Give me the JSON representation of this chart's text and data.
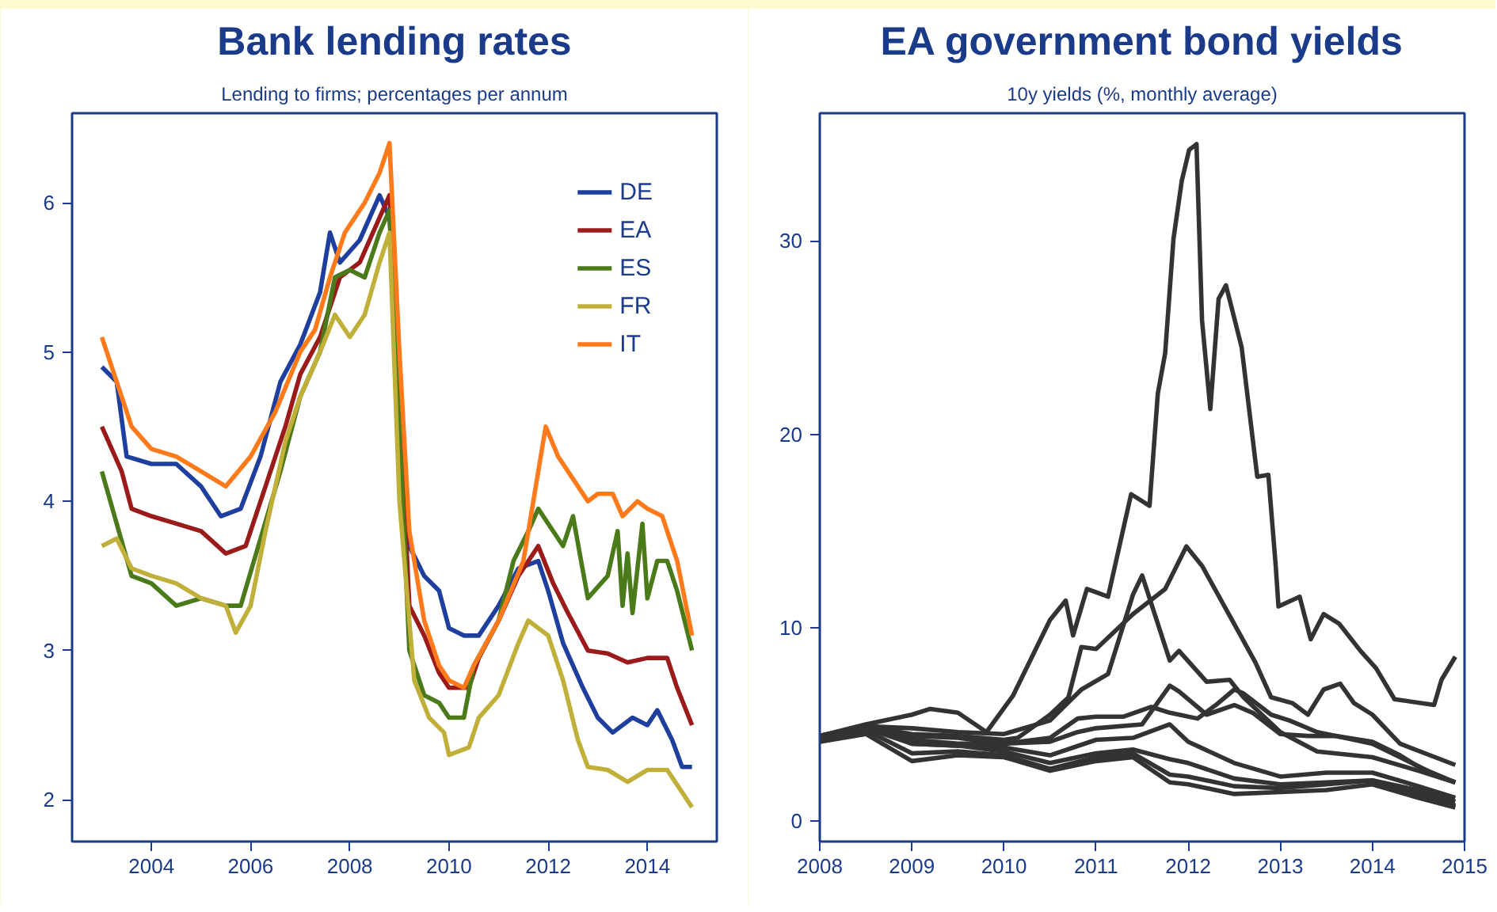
{
  "chart_data": [
    {
      "type": "line",
      "title": "Bank lending rates",
      "subtitle": "Lending to firms; percentages per annum",
      "xlim": [
        2002.4,
        2015.4
      ],
      "ylim": [
        1.72,
        6.6
      ],
      "xticks": [
        2004,
        2006,
        2008,
        2010,
        2012,
        2014
      ],
      "yticks": [
        2,
        3,
        4,
        5,
        6
      ],
      "grid": false,
      "legend": "top right",
      "line_style": "solid",
      "marker": "none",
      "series": [
        {
          "name": "DE",
          "color": "#1f3f9f",
          "x": [
            2003.0,
            2003.3,
            2003.5,
            2004,
            2004.5,
            2005,
            2005.4,
            2005.8,
            2006.2,
            2006.6,
            2007,
            2007.4,
            2007.6,
            2007.8,
            2008.2,
            2008.6,
            2008.8,
            2009.2,
            2009.5,
            2009.8,
            2010.0,
            2010.3,
            2010.6,
            2011.0,
            2011.4,
            2011.8,
            2012.0,
            2012.3,
            2012.7,
            2013.0,
            2013.3,
            2013.7,
            2014.0,
            2014.2,
            2014.5,
            2014.7,
            2014.9
          ],
          "values": [
            4.9,
            4.8,
            4.3,
            4.25,
            4.25,
            4.1,
            3.9,
            3.95,
            4.3,
            4.8,
            5.05,
            5.4,
            5.8,
            5.6,
            5.75,
            6.05,
            5.9,
            3.7,
            3.5,
            3.4,
            3.15,
            3.1,
            3.1,
            3.3,
            3.55,
            3.6,
            3.4,
            3.05,
            2.75,
            2.55,
            2.45,
            2.55,
            2.5,
            2.6,
            2.4,
            2.22,
            2.22
          ]
        },
        {
          "name": "EA",
          "color": "#9b1b1b",
          "x": [
            2003.0,
            2003.4,
            2003.6,
            2004,
            2004.5,
            2005,
            2005.5,
            2005.9,
            2006.3,
            2006.7,
            2007,
            2007.4,
            2007.8,
            2008.2,
            2008.6,
            2008.8,
            2009.0,
            2009.2,
            2009.5,
            2009.8,
            2010.0,
            2010.4,
            2010.6,
            2011.0,
            2011.4,
            2011.8,
            2012.1,
            2012.4,
            2012.8,
            2013.2,
            2013.6,
            2014.0,
            2014.4,
            2014.6,
            2014.9
          ],
          "values": [
            4.5,
            4.2,
            3.95,
            3.9,
            3.85,
            3.8,
            3.65,
            3.7,
            4.1,
            4.5,
            4.85,
            5.1,
            5.5,
            5.6,
            5.9,
            6.05,
            4.7,
            3.3,
            3.1,
            2.85,
            2.75,
            2.75,
            2.95,
            3.2,
            3.5,
            3.7,
            3.45,
            3.25,
            3.0,
            2.98,
            2.92,
            2.95,
            2.95,
            2.75,
            2.5
          ]
        },
        {
          "name": "ES",
          "color": "#4a7a1a",
          "x": [
            2003.0,
            2003.3,
            2003.6,
            2004,
            2004.5,
            2005,
            2005.5,
            2005.8,
            2006.2,
            2006.6,
            2007,
            2007.4,
            2007.7,
            2008.0,
            2008.3,
            2008.6,
            2008.8,
            2009.0,
            2009.2,
            2009.5,
            2009.8,
            2010.0,
            2010.3,
            2010.5,
            2011.0,
            2011.3,
            2011.6,
            2011.8,
            2012.0,
            2012.3,
            2012.5,
            2012.8,
            2013.2,
            2013.4,
            2013.5,
            2013.6,
            2013.7,
            2013.9,
            2014.0,
            2014.2,
            2014.4,
            2014.6,
            2014.9
          ],
          "values": [
            4.2,
            3.85,
            3.5,
            3.45,
            3.3,
            3.35,
            3.3,
            3.3,
            3.75,
            4.2,
            4.7,
            5.0,
            5.5,
            5.55,
            5.5,
            5.8,
            5.95,
            4.5,
            3.0,
            2.7,
            2.65,
            2.55,
            2.55,
            2.9,
            3.2,
            3.6,
            3.8,
            3.95,
            3.85,
            3.7,
            3.9,
            3.35,
            3.5,
            3.8,
            3.3,
            3.65,
            3.25,
            3.85,
            3.35,
            3.6,
            3.6,
            3.4,
            3.0
          ]
        },
        {
          "name": "FR",
          "color": "#c0b03a",
          "x": [
            2003.0,
            2003.3,
            2003.6,
            2004,
            2004.5,
            2005,
            2005.5,
            2005.7,
            2006.0,
            2006.3,
            2006.7,
            2007,
            2007.4,
            2007.7,
            2008.0,
            2008.3,
            2008.6,
            2008.8,
            2009.0,
            2009.3,
            2009.6,
            2009.9,
            2010.0,
            2010.4,
            2010.6,
            2011.0,
            2011.4,
            2011.6,
            2012.0,
            2012.3,
            2012.6,
            2012.8,
            2013.2,
            2013.6,
            2014.0,
            2014.4,
            2014.6,
            2014.9
          ],
          "values": [
            3.7,
            3.75,
            3.55,
            3.5,
            3.45,
            3.35,
            3.3,
            3.12,
            3.3,
            3.8,
            4.4,
            4.7,
            5.0,
            5.25,
            5.1,
            5.25,
            5.6,
            5.8,
            4.0,
            2.8,
            2.55,
            2.45,
            2.3,
            2.35,
            2.55,
            2.7,
            3.05,
            3.2,
            3.1,
            2.8,
            2.4,
            2.22,
            2.2,
            2.12,
            2.2,
            2.2,
            2.1,
            1.95
          ]
        },
        {
          "name": "IT",
          "color": "#ff7a1a",
          "x": [
            2003.0,
            2003.3,
            2003.6,
            2004,
            2004.5,
            2005,
            2005.5,
            2006,
            2006.5,
            2007,
            2007.3,
            2007.6,
            2007.9,
            2008.3,
            2008.6,
            2008.8,
            2009.0,
            2009.2,
            2009.5,
            2009.8,
            2010.0,
            2010.3,
            2010.5,
            2011.0,
            2011.5,
            2011.8,
            2011.95,
            2012.2,
            2012.5,
            2012.8,
            2013.0,
            2013.3,
            2013.5,
            2013.8,
            2014.0,
            2014.3,
            2014.6,
            2014.9
          ],
          "values": [
            5.1,
            4.8,
            4.5,
            4.35,
            4.3,
            4.2,
            4.1,
            4.3,
            4.6,
            5.0,
            5.15,
            5.5,
            5.8,
            6.0,
            6.2,
            6.4,
            5.0,
            3.8,
            3.2,
            2.9,
            2.8,
            2.75,
            2.9,
            3.2,
            3.6,
            4.2,
            4.5,
            4.3,
            4.15,
            4.0,
            4.05,
            4.05,
            3.9,
            4.0,
            3.95,
            3.9,
            3.6,
            3.1
          ]
        }
      ]
    },
    {
      "type": "line",
      "title": "EA government bond yields",
      "subtitle": "10y yields (%, monthly average)",
      "xlim": [
        2008,
        2015
      ],
      "ylim": [
        -1.06,
        36.6
      ],
      "xticks": [
        2008,
        2009,
        2010,
        2011,
        2012,
        2013,
        2014,
        2015
      ],
      "yticks": [
        0,
        10,
        20,
        30
      ],
      "grid": false,
      "legend": false,
      "line_style": "solid",
      "marker": "none",
      "series": [
        {
          "color": "#333333",
          "x": [
            2008.0,
            2008.5,
            2009.0,
            2009.2,
            2009.5,
            2009.81,
            2010.1,
            2010.5,
            2010.67,
            2010.75,
            2010.9,
            2011.13,
            2011.38,
            2011.58,
            2011.67,
            2011.75,
            2011.84,
            2011.93,
            2012.01,
            2012.09,
            2012.15,
            2012.24,
            2012.33,
            2012.41,
            2012.58,
            2012.75,
            2012.87,
            2012.95,
            2012.98,
            2013.21,
            2013.33,
            2013.47,
            2013.64,
            2013.87,
            2014.04,
            2014.24,
            2014.67,
            2014.75,
            2014.9
          ],
          "values": [
            4.4,
            5.0,
            5.5,
            5.8,
            5.6,
            4.6,
            6.5,
            10.4,
            11.4,
            9.6,
            12.0,
            11.6,
            16.9,
            16.3,
            22.1,
            24.2,
            30.1,
            33.1,
            34.7,
            35.0,
            25.9,
            21.3,
            27.0,
            27.7,
            24.5,
            17.8,
            17.9,
            13.2,
            11.1,
            11.6,
            9.4,
            10.7,
            10.2,
            8.8,
            7.9,
            6.3,
            6.0,
            7.3,
            8.5
          ]
        },
        {
          "color": "#333333",
          "x": [
            2008.0,
            2008.5,
            2009.0,
            2009.5,
            2010.0,
            2010.15,
            2010.5,
            2010.7,
            2010.84,
            2011.0,
            2011.4,
            2011.75,
            2011.98,
            2012.15,
            2012.44,
            2012.73,
            2012.9,
            2013.13,
            2013.3,
            2013.47,
            2013.65,
            2013.8,
            2014.0,
            2014.3,
            2014.9
          ],
          "values": [
            4.4,
            4.9,
            4.5,
            4.4,
            4.2,
            4.3,
            5.5,
            6.4,
            9.0,
            8.9,
            10.7,
            12.0,
            14.2,
            13.2,
            10.7,
            8.2,
            6.4,
            6.1,
            5.5,
            6.8,
            7.1,
            6.1,
            5.5,
            4.0,
            2.9
          ]
        },
        {
          "color": "#333333",
          "x": [
            2008.0,
            2008.5,
            2009.0,
            2009.5,
            2010.0,
            2010.5,
            2010.84,
            2011.13,
            2011.4,
            2011.5,
            2011.8,
            2011.9,
            2012.2,
            2012.45,
            2012.6,
            2013.0,
            2013.4,
            2014.0,
            2014.5,
            2014.9
          ],
          "values": [
            4.4,
            4.9,
            4.8,
            4.6,
            4.5,
            5.2,
            6.8,
            7.6,
            11.7,
            12.7,
            8.3,
            8.8,
            7.2,
            7.3,
            6.4,
            4.6,
            3.6,
            3.3,
            2.6,
            2.0
          ]
        },
        {
          "color": "#333333",
          "x": [
            2008.0,
            2008.5,
            2009.0,
            2009.5,
            2010.0,
            2010.5,
            2010.8,
            2011.0,
            2011.3,
            2011.6,
            2011.8,
            2012.1,
            2012.3,
            2012.5,
            2012.6,
            2012.9,
            2013.1,
            2013.4,
            2013.7,
            2014.0,
            2014.3,
            2014.6,
            2014.9
          ],
          "values": [
            4.4,
            4.9,
            4.2,
            4.0,
            4.0,
            4.3,
            5.3,
            5.4,
            5.4,
            5.9,
            5.6,
            5.3,
            6.0,
            6.8,
            6.6,
            5.5,
            5.2,
            4.6,
            4.3,
            4.0,
            3.3,
            2.6,
            2.0
          ]
        },
        {
          "color": "#333333",
          "x": [
            2008.0,
            2008.5,
            2009.0,
            2009.5,
            2010.0,
            2010.5,
            2010.8,
            2011.0,
            2011.5,
            2011.8,
            2011.9,
            2012.2,
            2012.5,
            2012.7,
            2013.0,
            2013.3,
            2013.6,
            2014.0,
            2014.3,
            2014.6,
            2014.9
          ],
          "values": [
            4.4,
            4.9,
            4.4,
            4.3,
            4.0,
            4.1,
            4.6,
            4.8,
            5.0,
            7.0,
            6.7,
            5.5,
            6.0,
            5.6,
            4.5,
            4.4,
            4.4,
            4.1,
            3.4,
            2.5,
            2.0
          ]
        },
        {
          "color": "#333333",
          "x": [
            2008.0,
            2008.5,
            2009.0,
            2009.5,
            2010.0,
            2010.5,
            2011.0,
            2011.4,
            2011.8,
            2012.0,
            2012.5,
            2013.0,
            2013.5,
            2014.0,
            2014.5,
            2014.9
          ],
          "values": [
            4.4,
            4.9,
            4.0,
            3.9,
            3.8,
            3.4,
            4.2,
            4.3,
            5.0,
            4.1,
            3.0,
            2.3,
            2.5,
            2.5,
            1.8,
            1.2
          ]
        },
        {
          "color": "#333333",
          "x": [
            2008.0,
            2008.5,
            2009.0,
            2009.5,
            2010.0,
            2010.5,
            2011.0,
            2011.4,
            2011.8,
            2012.0,
            2012.5,
            2013.0,
            2013.5,
            2014.0,
            2014.5,
            2014.9
          ],
          "values": [
            4.3,
            4.8,
            4.0,
            3.9,
            3.6,
            3.0,
            3.5,
            3.7,
            3.2,
            3.0,
            2.2,
            1.9,
            2.0,
            2.1,
            1.6,
            1.0
          ]
        },
        {
          "color": "#333333",
          "x": [
            2008.0,
            2008.5,
            2009.0,
            2009.5,
            2010.0,
            2010.5,
            2011.0,
            2011.4,
            2011.8,
            2012.0,
            2012.5,
            2013.0,
            2013.5,
            2014.0,
            2014.5,
            2014.9
          ],
          "values": [
            4.3,
            4.7,
            3.5,
            3.6,
            3.4,
            2.7,
            3.3,
            3.5,
            2.4,
            2.3,
            1.8,
            1.7,
            1.9,
            2.1,
            1.4,
            0.8
          ]
        },
        {
          "color": "#333333",
          "x": [
            2008.0,
            2008.5,
            2009.0,
            2009.5,
            2010.0,
            2010.5,
            2011.0,
            2011.4,
            2011.8,
            2012.0,
            2012.5,
            2013.0,
            2013.5,
            2014.0,
            2014.5,
            2014.9
          ],
          "values": [
            4.1,
            4.5,
            3.1,
            3.4,
            3.3,
            2.6,
            3.1,
            3.3,
            2.0,
            1.9,
            1.4,
            1.5,
            1.6,
            1.9,
            1.2,
            0.7
          ]
        }
      ]
    }
  ]
}
